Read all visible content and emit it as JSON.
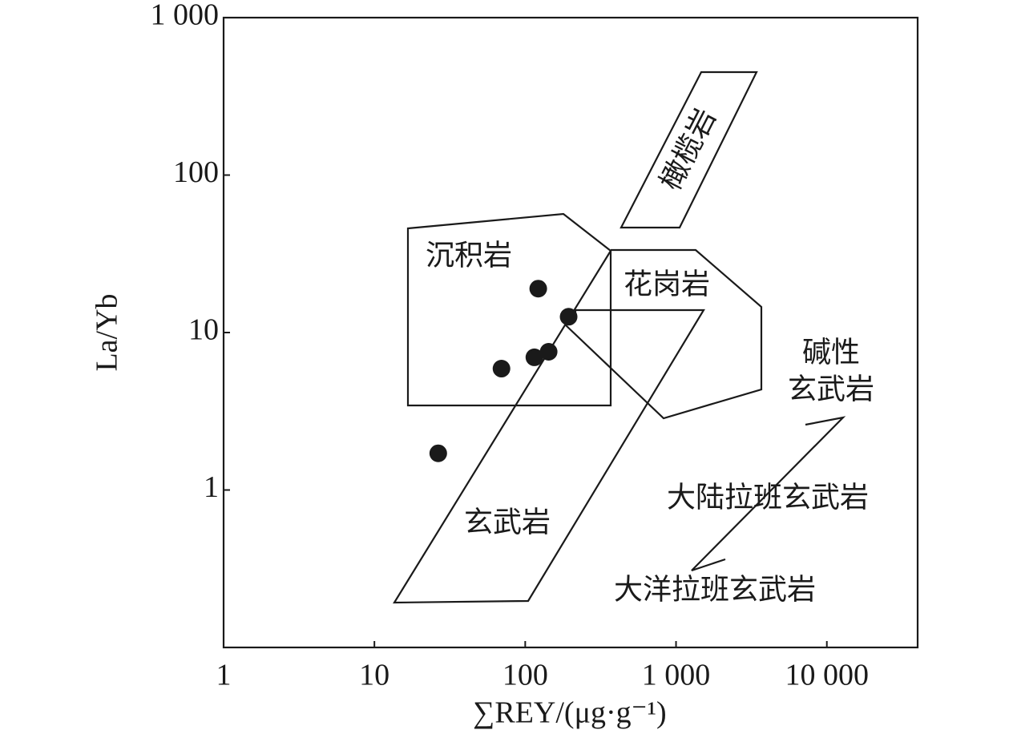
{
  "chart_data": {
    "type": "scatter",
    "xlabel": "∑REY/(μg·g⁻¹)",
    "ylabel": "La/Yb",
    "xscale": "log",
    "yscale": "log",
    "xlim": [
      1,
      40000
    ],
    "ylim": [
      0.1,
      1000
    ],
    "xticks": [
      1,
      10,
      100,
      {
        "value": 1000,
        "label": "1 000"
      },
      {
        "value": 10000,
        "label": "10 000"
      }
    ],
    "yticks": [
      1,
      10,
      100,
      {
        "value": 1000,
        "label": "1 000"
      }
    ],
    "series": [
      {
        "color": "#1a1a1a",
        "x": [
          26.5,
          69.6,
          115,
          143,
          122,
          194
        ],
        "values": [
          1.71,
          5.9,
          6.96,
          7.55,
          19.0,
          12.6
        ]
      }
    ],
    "annotations": [
      "橄榄岩",
      "沉积岩",
      "花岗岩",
      "碱性",
      "玄武岩",
      "大陆拉班玄武岩",
      "大洋拉班玄武岩",
      "玄武岩"
    ]
  }
}
